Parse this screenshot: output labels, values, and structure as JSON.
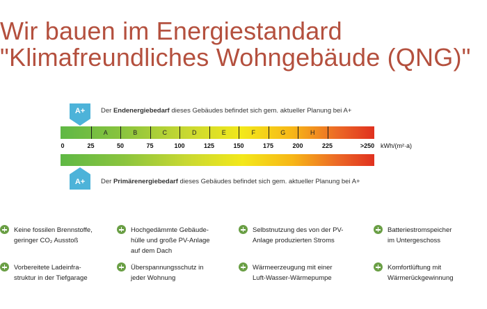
{
  "title": {
    "line1": "Wir bauen im Energiestandard",
    "line2": "\"Klimafreundliches Wohngebäude (QNG)\""
  },
  "scale": {
    "rating": "A+",
    "rating_value": 25,
    "end_caption": {
      "pre": "Der ",
      "bold": "Endenergiebedarf",
      "post": " dieses Gebäudes befindet sich gem. aktueller Planung bei A+"
    },
    "primary_caption": {
      "pre": "Der ",
      "bold": "Primärenergiebedarf",
      "post": " dieses Gebäudes befindet sich gem. aktueller Planung bei A+"
    },
    "classes": [
      "A",
      "B",
      "C",
      "D",
      "E",
      "F",
      "G",
      "H"
    ],
    "ticks": [
      "0",
      "25",
      "50",
      "75",
      "100",
      "125",
      "150",
      "175",
      "200",
      "225",
      ">250"
    ],
    "unit": "kWh/(m²·a)",
    "badge_color": "#4db3d9"
  },
  "features": [
    {
      "icon": "plus-circle-icon",
      "lines": [
        "Keine fossilen Brennstoffe,",
        "geringer CO₂ Ausstoß"
      ]
    },
    {
      "icon": "plus-circle-icon",
      "lines": [
        "Hochgedämmte Gebäude-",
        "hülle und große PV-Anlage",
        "auf dem Dach"
      ]
    },
    {
      "icon": "plus-circle-icon",
      "lines": [
        "Selbstnutzung des von der PV-",
        "Anlage produzierten Stroms"
      ]
    },
    {
      "icon": "plus-circle-icon",
      "lines": [
        "Batteriestromspeicher",
        "im Untergeschoss"
      ]
    },
    {
      "icon": "plus-circle-icon",
      "lines": [
        "Vorbereitete Ladeinfra-",
        "struktur in der Tiefgarage"
      ]
    },
    {
      "icon": "plus-circle-icon",
      "lines": [
        "Überspannungsschutz in",
        "jeder Wohnung"
      ]
    },
    {
      "icon": "plus-circle-icon",
      "lines": [
        "Wärmeerzeugung mit einer",
        "Luft-Wasser-Wärmepumpe"
      ]
    },
    {
      "icon": "plus-circle-icon",
      "lines": [
        "Komfortlüftung mit",
        "Wärmerückgewinnung"
      ]
    }
  ],
  "colors": {
    "title": "#b4503e",
    "icon_green": "#6a9f45"
  }
}
